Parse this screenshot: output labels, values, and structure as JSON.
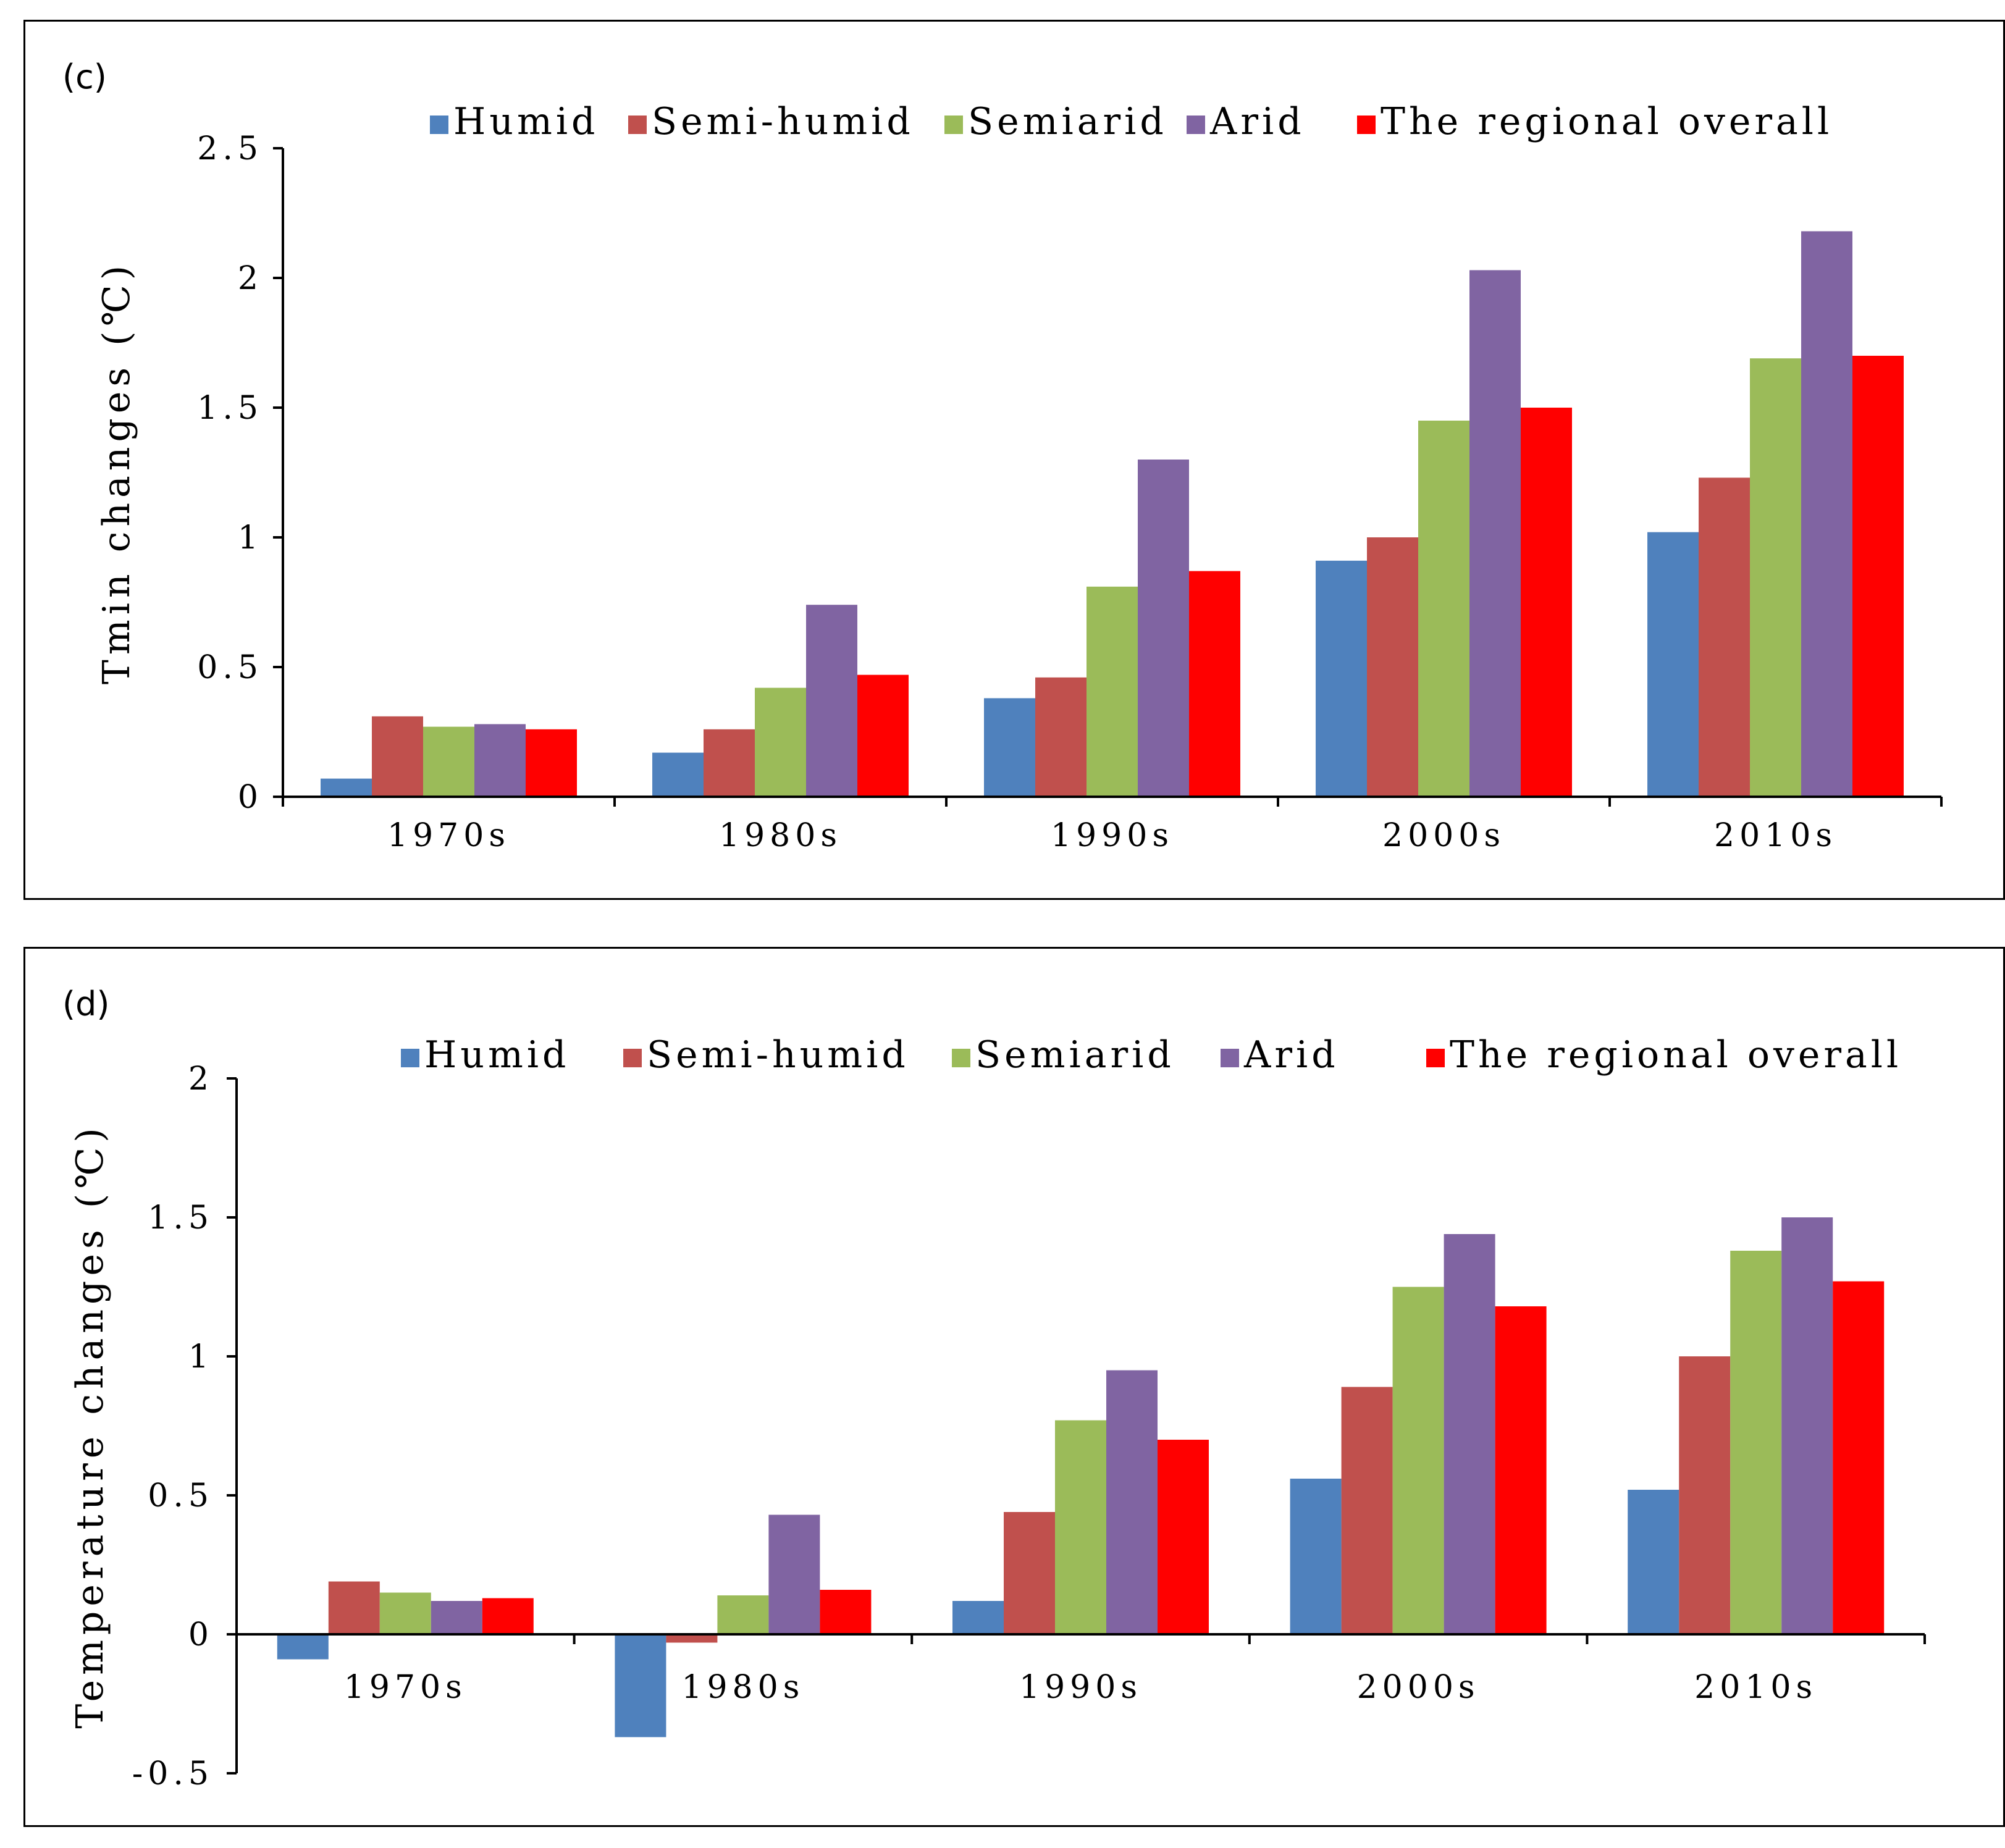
{
  "chart_data": [
    {
      "type": "bar",
      "panel_label": "(c)",
      "ylabel": "Tmin changes (℃)",
      "xlabel": "",
      "categories": [
        "1970s",
        "1980s",
        "1990s",
        "2000s",
        "2010s"
      ],
      "ylim": [
        0,
        2.5
      ],
      "yticks": [
        0,
        0.5,
        1,
        1.5,
        2,
        2.5
      ],
      "ytick_labels": [
        "0",
        "0.5",
        "1",
        "1.5",
        "2",
        "2.5"
      ],
      "legend_position": "top",
      "series": [
        {
          "name": "Humid",
          "color": "#4F81BD",
          "values": [
            0.07,
            0.17,
            0.38,
            0.91,
            1.02
          ]
        },
        {
          "name": "Semi-humid",
          "color": "#C0504D",
          "values": [
            0.31,
            0.26,
            0.46,
            1.0,
            1.23
          ]
        },
        {
          "name": "Semiarid",
          "color": "#9BBB59",
          "values": [
            0.27,
            0.42,
            0.81,
            1.45,
            1.69
          ]
        },
        {
          "name": "Arid",
          "color": "#8064A2",
          "values": [
            0.28,
            0.74,
            1.3,
            2.03,
            2.18
          ]
        },
        {
          "name": "The regional overall",
          "color": "#FF0000",
          "values": [
            0.26,
            0.47,
            0.87,
            1.5,
            1.7
          ]
        }
      ]
    },
    {
      "type": "bar",
      "panel_label": "(d)",
      "ylabel": "Temperature changes (℃)",
      "xlabel": "",
      "categories": [
        "1970s",
        "1980s",
        "1990s",
        "2000s",
        "2010s"
      ],
      "ylim": [
        -0.5,
        2
      ],
      "yticks": [
        -0.5,
        0,
        0.5,
        1,
        1.5,
        2
      ],
      "ytick_labels": [
        "-0.5",
        "0",
        "0.5",
        "1",
        "1.5",
        "2"
      ],
      "legend_position": "top",
      "series": [
        {
          "name": "Humid",
          "color": "#4F81BD",
          "values": [
            -0.09,
            -0.37,
            0.12,
            0.56,
            0.52
          ]
        },
        {
          "name": "Semi-humid",
          "color": "#C0504D",
          "values": [
            0.19,
            -0.03,
            0.44,
            0.89,
            1.0
          ]
        },
        {
          "name": "Semiarid",
          "color": "#9BBB59",
          "values": [
            0.15,
            0.14,
            0.77,
            1.25,
            1.38
          ]
        },
        {
          "name": "Arid",
          "color": "#8064A2",
          "values": [
            0.12,
            0.43,
            0.95,
            1.44,
            1.5
          ]
        },
        {
          "name": "The regional overall",
          "color": "#FF0000",
          "values": [
            0.13,
            0.16,
            0.7,
            1.18,
            1.27
          ]
        }
      ]
    }
  ]
}
